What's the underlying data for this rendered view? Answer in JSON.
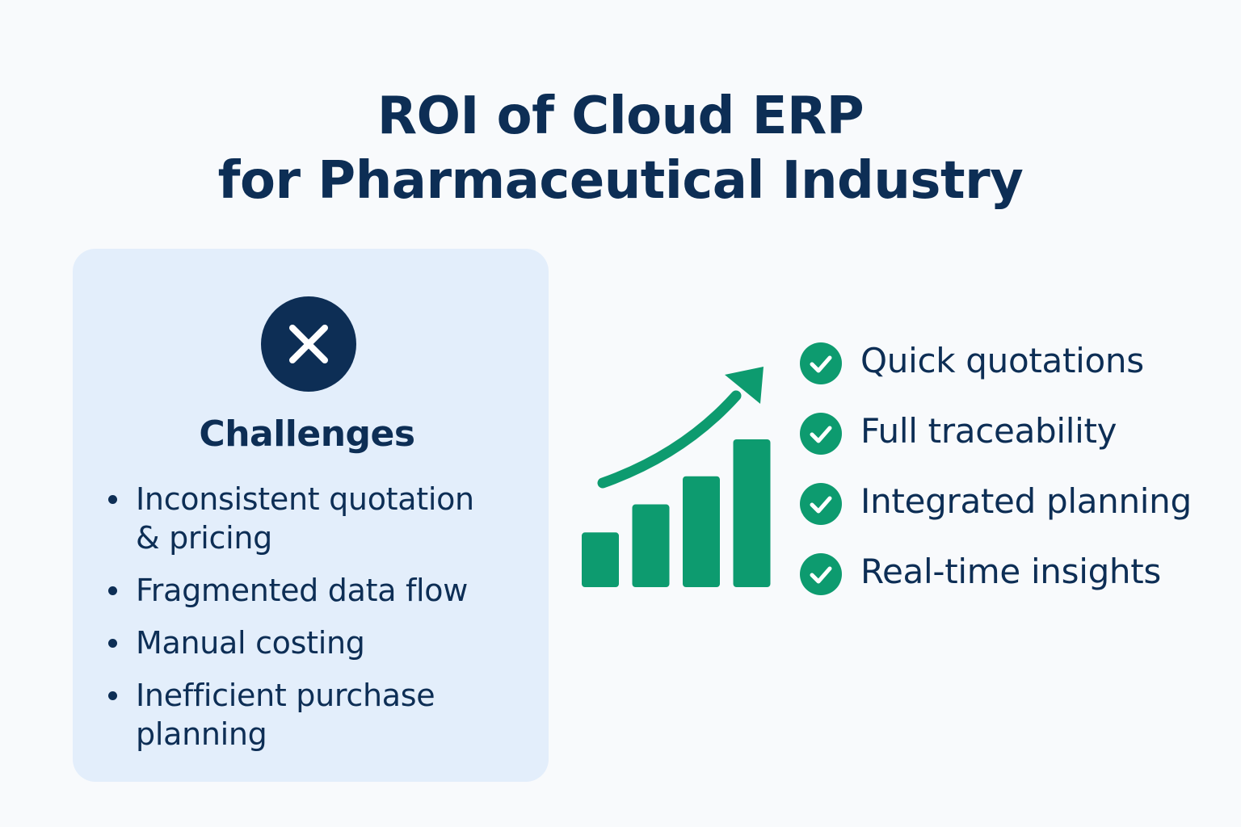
{
  "title": {
    "line1": "ROI of Cloud ERP",
    "line2": "for Pharmaceutical Industry"
  },
  "challenges": {
    "icon": "x-icon",
    "heading": "Challenges",
    "items": [
      {
        "line1": "Inconsistent quotation",
        "line2": "& pricing"
      },
      {
        "line1": "Fragmented data flow"
      },
      {
        "line1": "Manual costing"
      },
      {
        "line1": "Inefficient purchase",
        "line2": "planning"
      }
    ]
  },
  "growth_chart": {
    "icon": "growth-bar-chart-with-up-arrow",
    "relative_bar_heights": [
      0.37,
      0.56,
      0.75,
      1.0
    ]
  },
  "benefits": {
    "icon": "check-circle-icon",
    "items": [
      "Quick quotations",
      "Full traceability",
      "Integrated planning",
      "Real-time insights"
    ]
  },
  "colors": {
    "background": "#f8fafc",
    "navy": "#0d2e55",
    "card": "#e3eefb",
    "green": "#0d9b6f"
  }
}
